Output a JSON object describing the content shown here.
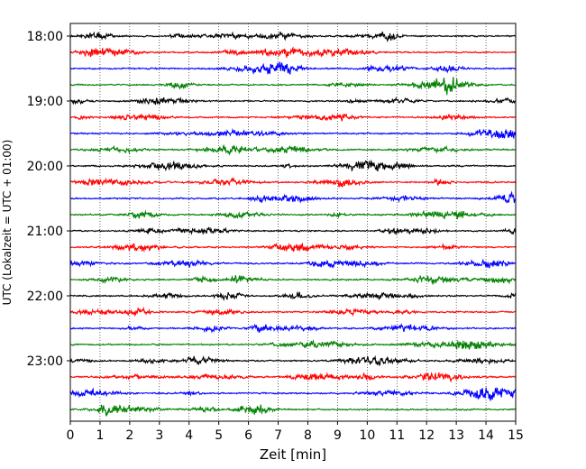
{
  "chart_data": {
    "type": "line",
    "title": "",
    "xlabel": "Zeit  [min]",
    "ylabel": "UTC (Lokalzeit = UTC + 01:00)",
    "xlim": [
      0,
      15
    ],
    "x_ticks": [
      0,
      1,
      2,
      3,
      4,
      5,
      6,
      7,
      8,
      9,
      10,
      11,
      12,
      13,
      14,
      15
    ],
    "y_tick_labels": [
      "18:00",
      "19:00",
      "20:00",
      "21:00",
      "22:00",
      "23:00"
    ],
    "grid": "vertical dotted at each minute",
    "legend": "none",
    "row_interval_minutes": 15,
    "row_colors": [
      "#000000",
      "#ff0000",
      "#0000ff",
      "#008000"
    ],
    "traces": [
      {
        "start": "18:00",
        "color": "#000000"
      },
      {
        "start": "18:15",
        "color": "#ff0000"
      },
      {
        "start": "18:30",
        "color": "#0000ff"
      },
      {
        "start": "18:45",
        "color": "#008000"
      },
      {
        "start": "19:00",
        "color": "#000000"
      },
      {
        "start": "19:15",
        "color": "#ff0000"
      },
      {
        "start": "19:30",
        "color": "#0000ff"
      },
      {
        "start": "19:45",
        "color": "#008000"
      },
      {
        "start": "20:00",
        "color": "#000000"
      },
      {
        "start": "20:15",
        "color": "#ff0000"
      },
      {
        "start": "20:30",
        "color": "#0000ff"
      },
      {
        "start": "20:45",
        "color": "#008000"
      },
      {
        "start": "21:00",
        "color": "#000000"
      },
      {
        "start": "21:15",
        "color": "#ff0000"
      },
      {
        "start": "21:30",
        "color": "#0000ff"
      },
      {
        "start": "21:45",
        "color": "#008000"
      },
      {
        "start": "22:00",
        "color": "#000000"
      },
      {
        "start": "22:15",
        "color": "#ff0000"
      },
      {
        "start": "22:30",
        "color": "#0000ff"
      },
      {
        "start": "22:45",
        "color": "#008000"
      },
      {
        "start": "23:00",
        "color": "#000000"
      },
      {
        "start": "23:15",
        "color": "#ff0000"
      },
      {
        "start": "23:30",
        "color": "#0000ff"
      },
      {
        "start": "23:45",
        "color": "#008000"
      }
    ]
  }
}
